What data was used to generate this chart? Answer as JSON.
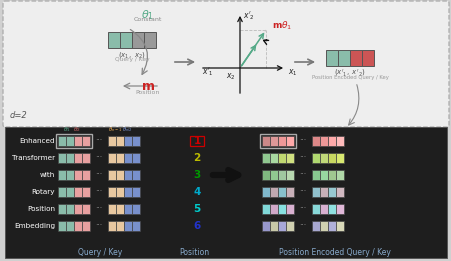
{
  "row_labels": [
    "Enhanced",
    "Transformer",
    "with",
    "Rotary",
    "Position",
    "Embedding"
  ],
  "position_numbers": [
    "1",
    "2",
    "3",
    "4",
    "5",
    "6"
  ],
  "position_colors": [
    "#cc0000",
    "#bbbb00",
    "#009900",
    "#00aacc",
    "#00cccc",
    "#2233cc"
  ],
  "col_label_qk": "Query / Key",
  "col_label_pos": "Position",
  "col_label_peqk": "Position Encoded Query / Key",
  "qk_left_colors": [
    "#8abcaa",
    "#8abcaa",
    "#e8a0a0",
    "#e8a0a0"
  ],
  "qk_right_colors": [
    "#e8c8a0",
    "#e8c8a0",
    "#7890cc",
    "#7890cc"
  ],
  "encoded_rows": [
    [
      "#cc8888",
      "#dd9898",
      "#ee9898",
      "#ffaaaa"
    ],
    [
      "#90c890",
      "#a8d8a0",
      "#c0d870",
      "#d0e080"
    ],
    [
      "#80b880",
      "#90c890",
      "#a0c8a0",
      "#b8d8b0"
    ],
    [
      "#80b8cc",
      "#c0a8b0",
      "#88c0cc",
      "#c8b0b8"
    ],
    [
      "#80d8d8",
      "#d0a8c8",
      "#88e0e0",
      "#d8b0d0"
    ],
    [
      "#9898cc",
      "#c8c8a8",
      "#a8a8d8",
      "#d0d0b0"
    ]
  ],
  "encoded_rows_small": [
    [
      "#dd8888",
      "#ee9898",
      "#ffaaaa",
      "#ffbbbb"
    ],
    [
      "#b0d870",
      "#c0d878",
      "#c8d860",
      "#d8e870"
    ],
    [
      "#88c890",
      "#98d8a0",
      "#a0c890",
      "#b0d8a8"
    ],
    [
      "#90c0cc",
      "#c8b0b8",
      "#98c8d0",
      "#d0b8c0"
    ],
    [
      "#88d8d8",
      "#d8b0d0",
      "#90e0e0",
      "#e0b8d8"
    ],
    [
      "#a8a8d0",
      "#d0d0b0",
      "#b0b0d8",
      "#d8d8b8"
    ]
  ],
  "top_qk_colors": [
    "#8abcaa",
    "#8abcaa",
    "#888888",
    "#888888"
  ],
  "top_enc_colors": [
    "#8abcaa",
    "#8abcaa",
    "#cc5555",
    "#cc5555"
  ],
  "bg_figure": "#d0d0d0",
  "bg_top": "#eeeeee",
  "bg_bottom": "#1e1e1e"
}
